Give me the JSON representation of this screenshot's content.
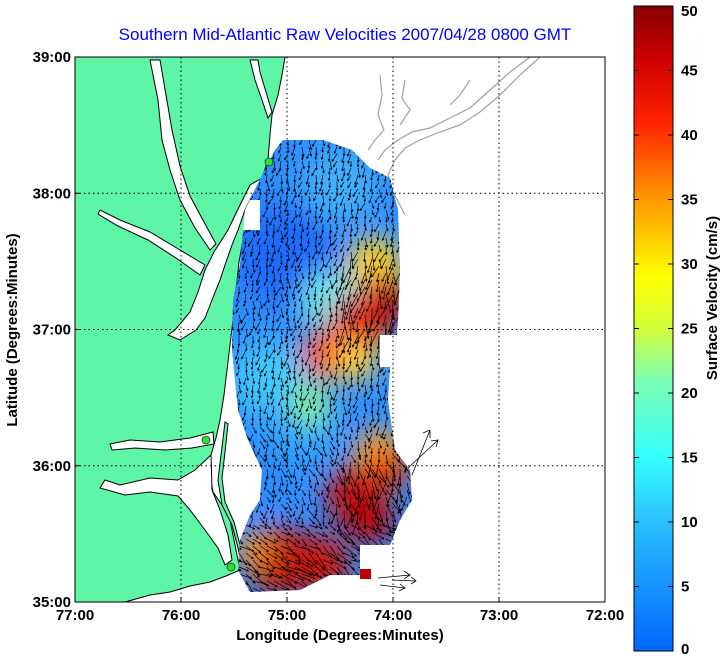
{
  "chart_data": {
    "type": "heatmap",
    "title": "Southern Mid-Atlantic Raw Velocities 2007/04/28 0800 GMT",
    "xlabel": "Longitude (Degrees:Minutes)",
    "ylabel": "Latitude (Degrees:Minutes)",
    "x_ticks": [
      "77:00",
      "76:00",
      "75:00",
      "74:00",
      "73:00",
      "72:00"
    ],
    "y_ticks": [
      "39:00",
      "38:00",
      "37:00",
      "36:00",
      "35:00"
    ],
    "x_tick_values": [
      -77,
      -76,
      -75,
      -74,
      -73,
      -72
    ],
    "y_tick_values": [
      39,
      38,
      37,
      36,
      35
    ],
    "xlim": [
      -77,
      -72
    ],
    "ylim": [
      35,
      39
    ],
    "grid": true,
    "colorbar": {
      "label": "Surface Velocity (cm/s)",
      "range": [
        0,
        50
      ],
      "ticks": [
        "50",
        "45",
        "40",
        "35",
        "30",
        "25",
        "20",
        "15",
        "10",
        "5",
        "0"
      ],
      "tick_values": [
        50,
        45,
        40,
        35,
        30,
        25,
        20,
        15,
        10,
        5,
        0
      ]
    },
    "colors": {
      "land": "#5ff5a6",
      "water": "#ffffff",
      "coastline": "#000000",
      "bathymetry": "#a0a0a0",
      "stations": "#33dd33"
    },
    "field_samples": [
      {
        "lon": -75.3,
        "lat": 37.6,
        "speed": 5
      },
      {
        "lon": -74.8,
        "lat": 38.0,
        "speed": 9
      },
      {
        "lon": -74.2,
        "lat": 37.3,
        "speed": 45
      },
      {
        "lon": -74.4,
        "lat": 36.95,
        "speed": 42
      },
      {
        "lon": -74.9,
        "lat": 36.8,
        "speed": 40
      },
      {
        "lon": -75.0,
        "lat": 36.4,
        "speed": 14
      },
      {
        "lon": -74.1,
        "lat": 35.95,
        "speed": 40
      },
      {
        "lon": -74.35,
        "lat": 35.7,
        "speed": 44
      },
      {
        "lon": -75.0,
        "lat": 35.3,
        "speed": 43
      },
      {
        "lon": -75.4,
        "lat": 35.9,
        "speed": 8
      }
    ]
  }
}
